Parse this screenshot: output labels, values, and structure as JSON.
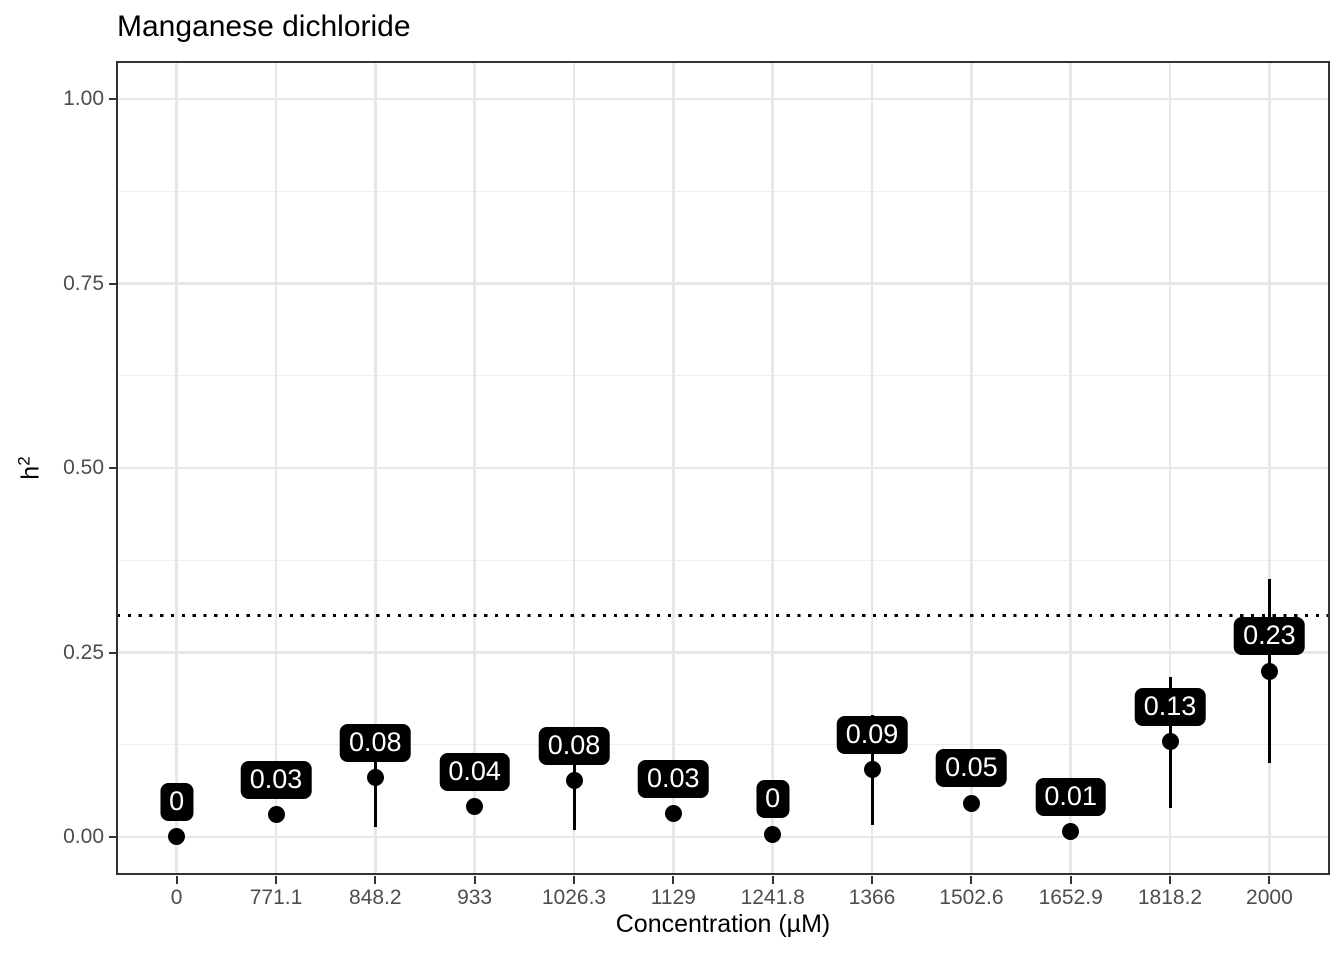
{
  "chart_data": {
    "type": "scatter",
    "title": "Manganese dichloride",
    "xlabel": "Concentration (µM)",
    "ylabel": "h²",
    "ylabel_base": "h",
    "ylabel_exp": "2",
    "categories": [
      "0",
      "771.1",
      "848.2",
      "933",
      "1026.3",
      "1129",
      "1241.8",
      "1366",
      "1502.6",
      "1652.9",
      "1818.2",
      "2000"
    ],
    "values": [
      0,
      0.03,
      0.08,
      0.04,
      0.08,
      0.03,
      0,
      0.09,
      0.05,
      0.01,
      0.13,
      0.23
    ],
    "point_labels": [
      "0",
      "0.03",
      "0.08",
      "0.04",
      "0.08",
      "0.03",
      "0",
      "0.09",
      "0.05",
      "0.01",
      "0.13",
      "0.23"
    ],
    "point_y_rendered": [
      0.001,
      0.03,
      0.081,
      0.041,
      0.077,
      0.032,
      0.004,
      0.091,
      0.046,
      0.007,
      0.129,
      0.225
    ],
    "error_low": [
      null,
      null,
      0.013,
      null,
      0.01,
      null,
      null,
      0.016,
      null,
      null,
      0.039,
      0.1
    ],
    "error_high": [
      null,
      null,
      0.147,
      null,
      0.145,
      null,
      null,
      0.166,
      null,
      null,
      0.217,
      0.35
    ],
    "yticks": [
      0,
      0.25,
      0.5,
      0.75,
      1.0
    ],
    "ytick_labels": [
      "0.00",
      "0.25",
      "0.50",
      "0.75",
      "1.00"
    ],
    "yminor": [
      0.125,
      0.375,
      0.625,
      0.875
    ],
    "ylim": [
      -0.05,
      1.05
    ],
    "ref_line_y": 0.3,
    "ref_line_style": "dotted",
    "grid": true,
    "legend": false,
    "colors": {
      "point": "#000000",
      "error_bar": "#000000",
      "label_bg": "#000000",
      "label_text": "#ffffff",
      "grid_major": "#e7e7e7",
      "grid_minor": "#efefef",
      "panel_border": "#333333",
      "axis_tick": "#333333",
      "tick_text": "#4d4d4d",
      "title_text": "#000000",
      "ref_line": "#000000",
      "background": "#ffffff"
    }
  }
}
